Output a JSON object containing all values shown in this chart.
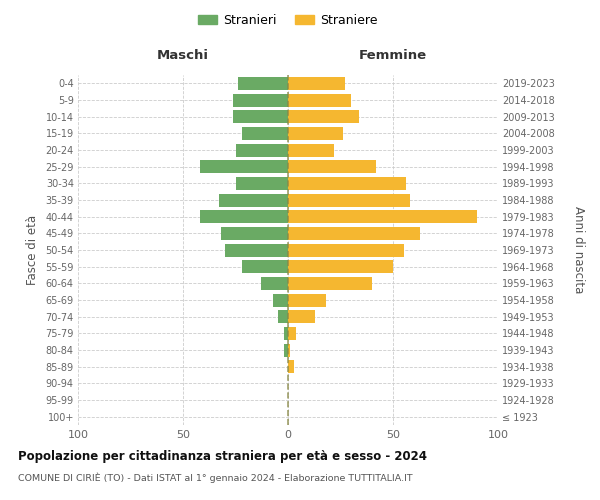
{
  "age_groups": [
    "100+",
    "95-99",
    "90-94",
    "85-89",
    "80-84",
    "75-79",
    "70-74",
    "65-69",
    "60-64",
    "55-59",
    "50-54",
    "45-49",
    "40-44",
    "35-39",
    "30-34",
    "25-29",
    "20-24",
    "15-19",
    "10-14",
    "5-9",
    "0-4"
  ],
  "birth_years": [
    "≤ 1923",
    "1924-1928",
    "1929-1933",
    "1934-1938",
    "1939-1943",
    "1944-1948",
    "1949-1953",
    "1954-1958",
    "1959-1963",
    "1964-1968",
    "1969-1973",
    "1974-1978",
    "1979-1983",
    "1984-1988",
    "1989-1993",
    "1994-1998",
    "1999-2003",
    "2004-2008",
    "2009-2013",
    "2014-2018",
    "2019-2023"
  ],
  "maschi": [
    0,
    0,
    0,
    0,
    2,
    2,
    5,
    7,
    13,
    22,
    30,
    32,
    42,
    33,
    25,
    42,
    25,
    22,
    26,
    26,
    24
  ],
  "femmine": [
    0,
    0,
    0,
    3,
    1,
    4,
    13,
    18,
    40,
    50,
    55,
    63,
    90,
    58,
    56,
    42,
    22,
    26,
    34,
    30,
    27
  ],
  "male_color": "#6aaa64",
  "female_color": "#f5b730",
  "grid_color": "#cccccc",
  "dashed_line_color": "#888844",
  "background_color": "#ffffff",
  "title": "Popolazione per cittadinanza straniera per età e sesso - 2024",
  "subtitle": "COMUNE DI CIRIÈ (TO) - Dati ISTAT al 1° gennaio 2024 - Elaborazione TUTTITALIA.IT",
  "header_maschi": "Maschi",
  "header_femmine": "Femmine",
  "ylabel_left": "Fasce di età",
  "ylabel_right": "Anni di nascita",
  "legend_stranieri": "Stranieri",
  "legend_straniere": "Straniere",
  "xlim": 100
}
